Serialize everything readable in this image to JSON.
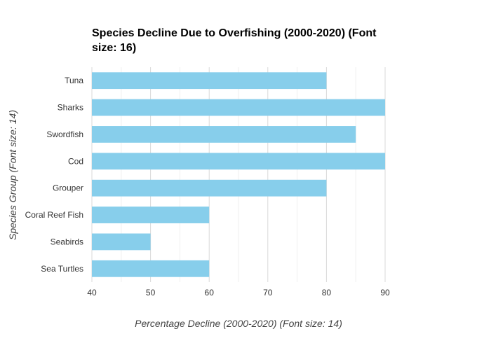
{
  "chart_data": {
    "type": "bar",
    "orientation": "horizontal",
    "title": "Species Decline Due to Overfishing (2000-2020) (Font size: 16)",
    "title_lines": [
      "Species Decline Due to Overfishing (2000-2020) (Font",
      "size: 16)"
    ],
    "xlabel": "Percentage Decline (2000-2020) (Font size: 14)",
    "ylabel": "Species Group (Font size: 14)",
    "categories": [
      "Tuna",
      "Sharks",
      "Swordfish",
      "Cod",
      "Grouper",
      "Coral Reef Fish",
      "Seabirds",
      "Sea Turtles"
    ],
    "values": [
      80,
      90,
      85,
      90,
      80,
      60,
      50,
      60
    ],
    "xlim": [
      40,
      90
    ],
    "xticks": [
      40,
      50,
      60,
      70,
      80,
      90
    ],
    "grid": true,
    "bar_color": "#87CEEB",
    "grid_color": "#e5e5e5"
  }
}
